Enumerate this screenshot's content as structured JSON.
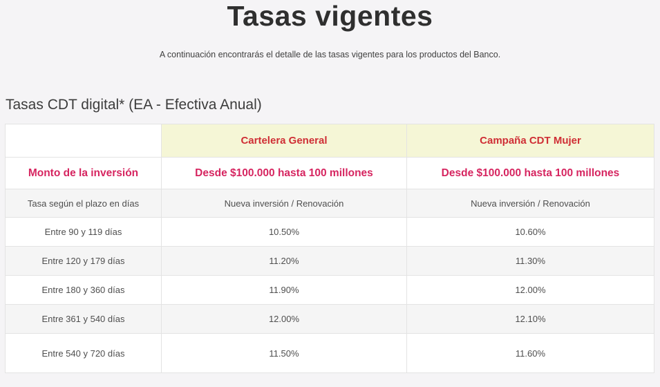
{
  "page": {
    "title": "Tasas vigentes",
    "subtitle": "A continuación encontrarás el detalle de las tasas vigentes para los productos del Banco.",
    "section_heading": "Tasas CDT digital* (EA - Efectiva Anual)"
  },
  "colors": {
    "page_background": "#f5f4f6",
    "column_header_background": "#f5f6d6",
    "column_header_text": "#cf2e35",
    "accent_pink": "#d62560",
    "alt_row_background": "#f5f5f5",
    "cell_border": "#e3e3e3",
    "cell_text": "#4e4e4e",
    "title_text": "#2f2f2f"
  },
  "table": {
    "column_headers": [
      "Cartelera General",
      "Campaña CDT Mujer"
    ],
    "monto_row": {
      "label": "Monto de la inversión",
      "cartelera": "Desde $100.000 hasta 100 millones",
      "campana": "Desde $100.000 hasta 100 millones"
    },
    "subheader_row": {
      "label": "Tasa según el plazo en días",
      "cartelera": "Nueva inversión / Renovación",
      "campana": "Nueva inversión / Renovación"
    },
    "rate_rows": [
      {
        "label": "Entre 90 y 119 días",
        "cartelera": "10.50%",
        "campana": "10.60%"
      },
      {
        "label": "Entre 120 y 179 días",
        "cartelera": "11.20%",
        "campana": "11.30%"
      },
      {
        "label": "Entre 180 y 360 días",
        "cartelera": "11.90%",
        "campana": "12.00%"
      },
      {
        "label": "Entre 361 y 540 días",
        "cartelera": "12.00%",
        "campana": "12.10%"
      },
      {
        "label": "Entre 540 y 720 días",
        "cartelera": "11.50%",
        "campana": "11.60%"
      }
    ]
  },
  "chart_data": {
    "type": "table",
    "title": "Tasas CDT digital* (EA - Efectiva Anual)",
    "categories": [
      "Entre 90 y 119 días",
      "Entre 120 y 179 días",
      "Entre 180 y 360 días",
      "Entre 361 y 540 días",
      "Entre 540 y 720 días"
    ],
    "series": [
      {
        "name": "Cartelera General",
        "values": [
          10.5,
          11.2,
          11.9,
          12.0,
          11.5
        ]
      },
      {
        "name": "Campaña CDT Mujer",
        "values": [
          10.6,
          11.3,
          12.0,
          12.1,
          11.6
        ]
      }
    ],
    "unit": "% EA"
  }
}
